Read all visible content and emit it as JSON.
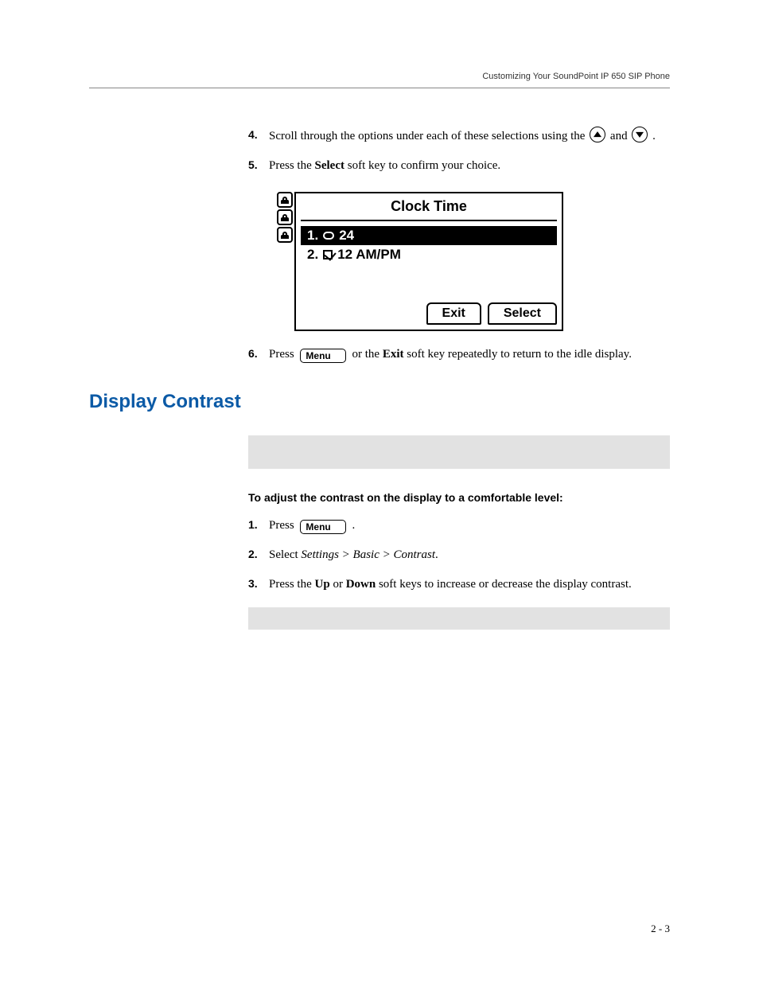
{
  "header": {
    "running_title": "Customizing Your SoundPoint IP 650 SIP Phone"
  },
  "steps_a": [
    {
      "num": "4.",
      "html": "Scroll through the options under each of these selections using the {{up}} and {{down}} ."
    },
    {
      "num": "5.",
      "html": "Press the <b>Select</b> soft key to confirm your choice."
    }
  ],
  "screenshot": {
    "title": "Clock Time",
    "rows": [
      {
        "label": "1.",
        "kind": "radio-open",
        "text": "24",
        "selected": true
      },
      {
        "label": "2.",
        "kind": "radio-check",
        "text": "12 AM/PM",
        "selected": false
      }
    ],
    "softkeys": [
      "Exit",
      "Select"
    ],
    "side_tabs": 3
  },
  "steps_a2": [
    {
      "num": "6.",
      "html": "Press {{menu}} or the <b>Exit</b> soft key repeatedly to return to the idle display."
    }
  ],
  "section": {
    "title": "Display Contrast",
    "title_color": "#0b5aa6",
    "lead_in": "To adjust the contrast on the display to a comfortable level:",
    "steps": [
      {
        "num": "1.",
        "html": "Press {{menu}} ."
      },
      {
        "num": "2.",
        "html": "Select <i>Settings > Basic > Contrast</i>."
      },
      {
        "num": "3.",
        "html": "Press the <b>Up</b> or <b>Down</b> soft keys to increase or decrease the display contrast."
      }
    ]
  },
  "page_number": "2 - 3",
  "glyphs": {
    "menu_label": "Menu"
  },
  "colors": {
    "note_bg": "#e2e2e2",
    "text": "#000000",
    "rule": "#888888"
  }
}
